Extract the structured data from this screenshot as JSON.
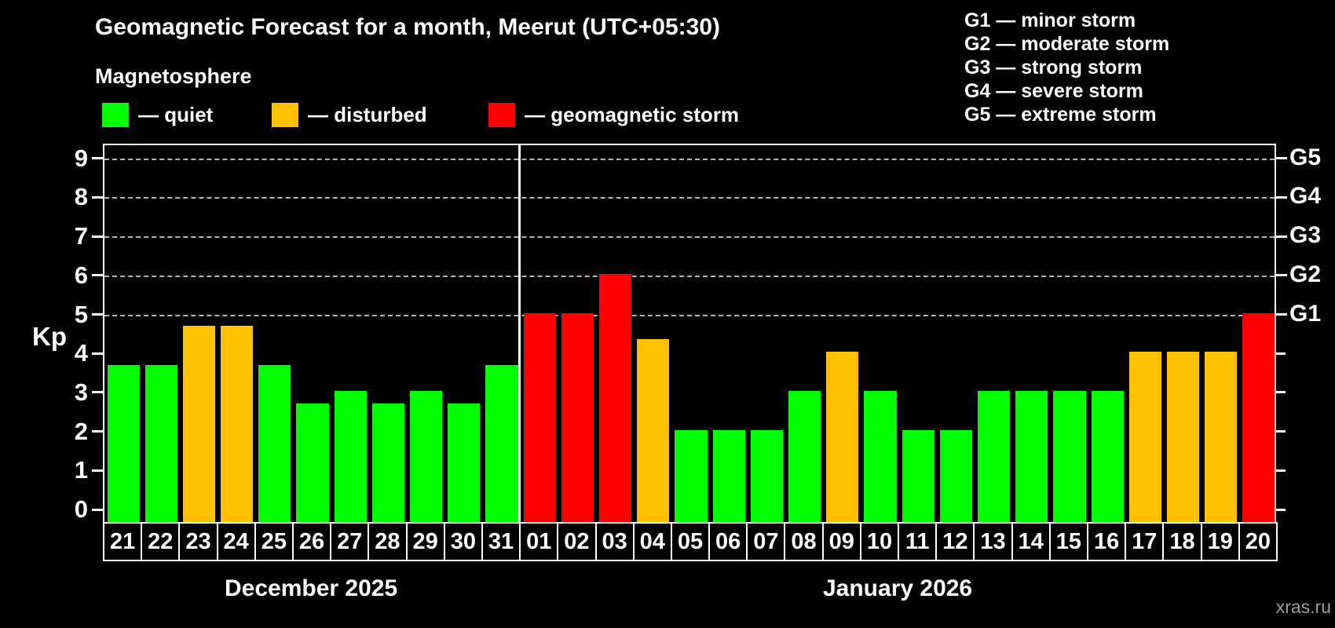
{
  "header": {
    "title": "Geomagnetic Forecast for a month, Meerut (UTC+05:30)",
    "subtitle": "Magnetosphere"
  },
  "kp_legend": [
    {
      "label": "— quiet",
      "status": "quiet"
    },
    {
      "label": "— disturbed",
      "status": "disturbed"
    },
    {
      "label": "— geomagnetic storm",
      "status": "storm"
    }
  ],
  "g_legend": [
    "G1 — minor storm",
    "G2 — moderate storm",
    "G3 — strong storm",
    "G4 — severe storm",
    "G5 — extreme storm"
  ],
  "watermark": "xras.ru",
  "chart_data": {
    "type": "bar",
    "title": "Geomagnetic Forecast for a month, Meerut (UTC+05:30)",
    "subtitle": "Magnetosphere",
    "ylabel": "Kp",
    "ylim": [
      0,
      9.4
    ],
    "yticks": [
      0,
      1,
      2,
      3,
      4,
      5,
      6,
      7,
      8,
      9
    ],
    "grid_values": [
      5,
      6,
      7,
      8,
      9
    ],
    "grid": "horizontal dashed at storm levels only",
    "legend_position": "top-left",
    "right_axis": [
      {
        "value": 5,
        "label": "G1"
      },
      {
        "value": 6,
        "label": "G2"
      },
      {
        "value": 7,
        "label": "G3"
      },
      {
        "value": 8,
        "label": "G4"
      },
      {
        "value": 9,
        "label": "G5"
      }
    ],
    "categories": [
      "21",
      "22",
      "23",
      "24",
      "25",
      "26",
      "27",
      "28",
      "29",
      "30",
      "31",
      "01",
      "02",
      "03",
      "04",
      "05",
      "06",
      "07",
      "08",
      "09",
      "10",
      "11",
      "12",
      "13",
      "14",
      "15",
      "16",
      "17",
      "18",
      "19",
      "20"
    ],
    "values": [
      3.67,
      3.67,
      4.67,
      4.67,
      3.67,
      2.67,
      3,
      2.67,
      3,
      2.67,
      3.67,
      5,
      5,
      6,
      4.33,
      2,
      2,
      2,
      3,
      4,
      3,
      2,
      2,
      3,
      3,
      3,
      3,
      4,
      4,
      4,
      5
    ],
    "statuses": [
      "quiet",
      "quiet",
      "disturbed",
      "disturbed",
      "quiet",
      "quiet",
      "quiet",
      "quiet",
      "quiet",
      "quiet",
      "quiet",
      "storm",
      "storm",
      "storm",
      "disturbed",
      "quiet",
      "quiet",
      "quiet",
      "quiet",
      "disturbed",
      "quiet",
      "quiet",
      "quiet",
      "quiet",
      "quiet",
      "quiet",
      "quiet",
      "disturbed",
      "disturbed",
      "disturbed",
      "storm"
    ],
    "colors": {
      "quiet": "#00FF00",
      "disturbed": "#FFC000",
      "storm": "#FF0000"
    },
    "months": [
      {
        "label": "December 2025",
        "from": 0,
        "to": 10
      },
      {
        "label": "January 2026",
        "from": 11,
        "to": 30
      }
    ],
    "divider_after_index": 10
  }
}
